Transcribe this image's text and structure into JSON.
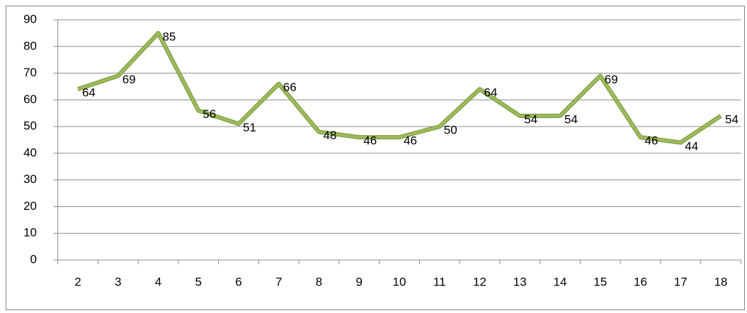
{
  "chart_data": {
    "type": "line",
    "categories": [
      "2",
      "3",
      "4",
      "5",
      "6",
      "7",
      "8",
      "9",
      "10",
      "11",
      "12",
      "13",
      "14",
      "15",
      "16",
      "17",
      "18"
    ],
    "values": [
      64,
      69,
      85,
      56,
      51,
      66,
      48,
      46,
      46,
      50,
      64,
      54,
      54,
      69,
      46,
      44,
      54
    ],
    "color": "#9bbb59",
    "ylim": [
      0,
      90
    ],
    "yticks": [
      0,
      10,
      20,
      30,
      40,
      50,
      60,
      70,
      80,
      90
    ],
    "grid": true
  }
}
